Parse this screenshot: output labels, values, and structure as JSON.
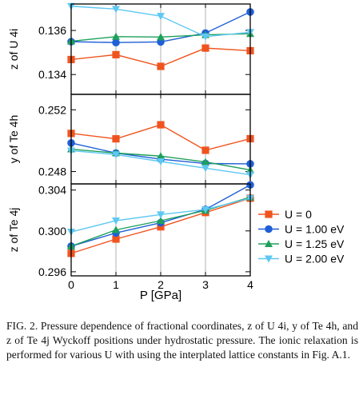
{
  "chart_data": {
    "type": "line",
    "x": [
      0,
      1,
      2,
      3,
      4
    ],
    "xlabel": "P [GPa]",
    "xticks": [
      "0",
      "1",
      "2",
      "3",
      "4"
    ],
    "xlim": [
      0,
      4
    ],
    "grid": true,
    "legend_position": "right",
    "series_styles": [
      {
        "name": "U = 0",
        "color": "#f0541e",
        "marker": "square"
      },
      {
        "name": "U = 1.00 eV",
        "color": "#1f5fd6",
        "marker": "circle"
      },
      {
        "name": "U = 1.25 eV",
        "color": "#1ea05a",
        "marker": "triangle-up"
      },
      {
        "name": "U = 2.00 eV",
        "color": "#5ec8f2",
        "marker": "triangle-down"
      }
    ],
    "panels": [
      {
        "ylabel": "z of U 4i",
        "ylim": [
          0.1331,
          0.1372
        ],
        "yticks": [
          "0.134",
          "0.136"
        ],
        "ytick_values": [
          0.134,
          0.136
        ],
        "series": [
          {
            "name": "U = 0",
            "values": [
              0.13468,
              0.1349,
              0.13437,
              0.1352,
              0.13508
            ]
          },
          {
            "name": "U = 1.00 eV",
            "values": [
              0.13549,
              0.13545,
              0.13548,
              0.13588,
              0.13684
            ]
          },
          {
            "name": "U = 1.25 eV",
            "values": [
              0.13551,
              0.13572,
              0.1357,
              0.1358,
              0.13585
            ]
          },
          {
            "name": "U = 2.00 eV",
            "values": [
              0.1371,
              0.13697,
              0.13665,
              0.13572,
              0.13592
            ]
          }
        ]
      },
      {
        "ylabel": "y of Te 4h",
        "ylim": [
          0.2472,
          0.253
        ],
        "yticks": [
          "0.248",
          "0.252"
        ],
        "ytick_values": [
          0.248,
          0.252
        ],
        "series": [
          {
            "name": "U = 0",
            "values": [
              0.25047,
              0.25012,
              0.25103,
              0.24938,
              0.25013
            ]
          },
          {
            "name": "U = 1.00 eV",
            "values": [
              0.24985,
              0.2492,
              0.2488,
              0.24852,
              0.2485
            ]
          },
          {
            "name": "U = 1.25 eV",
            "values": [
              0.24945,
              0.2492,
              0.249,
              0.24862,
              0.2481
            ]
          },
          {
            "name": "U = 2.00 eV",
            "values": [
              0.24935,
              0.2491,
              0.24865,
              0.24822,
              0.24779
            ]
          }
        ]
      },
      {
        "ylabel": "z of Te 4j",
        "ylim": [
          0.2956,
          0.3046
        ],
        "yticks": [
          "0.296",
          "0.300",
          "0.304"
        ],
        "ytick_values": [
          0.296,
          0.3,
          0.304
        ],
        "series": [
          {
            "name": "U = 0",
            "values": [
              0.2978,
              0.2992,
              0.3004,
              0.3018,
              0.3032
            ]
          },
          {
            "name": "U = 1.00 eV",
            "values": [
              0.2985,
              0.2998,
              0.3008,
              0.3021,
              0.3045
            ]
          },
          {
            "name": "U = 1.25 eV",
            "values": [
              0.2985,
              0.3001,
              0.301,
              0.302,
              0.3033
            ]
          },
          {
            "name": "U = 2.00 eV",
            "values": [
              0.2999,
              0.301,
              0.3016,
              0.3021,
              0.3032
            ]
          }
        ]
      }
    ],
    "caption": "FIG. 2. Pressure dependence of fractional coordinates, z of U 4i, y of Te 4h, and z of Te 4j Wyckoff positions under hydrostatic pressure. The ionic relaxation is performed for various U with using the interplated lattice constants in Fig. A.1."
  }
}
